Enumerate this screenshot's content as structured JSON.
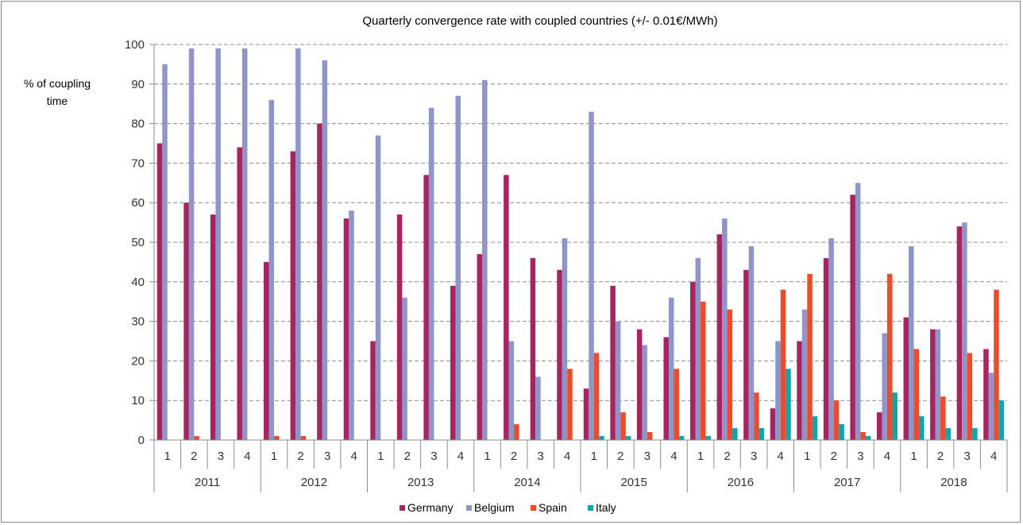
{
  "chart_data": {
    "type": "bar",
    "title": "Quarterly convergence rate with coupled countries (+/- 0.01€/MWh)",
    "ylabel_lines": [
      "% of coupling",
      "time"
    ],
    "xlabel": "",
    "ylim": [
      0,
      100
    ],
    "yticks": [
      0,
      10,
      20,
      30,
      40,
      50,
      60,
      70,
      80,
      90,
      100
    ],
    "grid": "horizontal-dashed",
    "legend_position": "bottom",
    "years": [
      "2011",
      "2012",
      "2013",
      "2014",
      "2015",
      "2016",
      "2017",
      "2018"
    ],
    "quarters": [
      "1",
      "2",
      "3",
      "4"
    ],
    "series": [
      {
        "name": "Germany",
        "color": "#A6245F",
        "values": [
          75,
          60,
          57,
          74,
          45,
          73,
          80,
          56,
          25,
          57,
          67,
          39,
          47,
          67,
          46,
          43,
          13,
          39,
          28,
          26,
          40,
          52,
          43,
          8,
          25,
          46,
          62,
          7,
          31,
          28,
          54,
          23
        ]
      },
      {
        "name": "Belgium",
        "color": "#8E95C9",
        "values": [
          95,
          99,
          99,
          99,
          86,
          99,
          96,
          58,
          77,
          36,
          84,
          87,
          91,
          25,
          16,
          51,
          83,
          30,
          24,
          36,
          46,
          56,
          49,
          25,
          33,
          51,
          65,
          27,
          49,
          28,
          55,
          17
        ]
      },
      {
        "name": "Spain",
        "color": "#EE4B2B",
        "values": [
          0,
          1,
          0,
          0,
          1,
          1,
          0,
          0,
          0,
          0,
          0,
          0,
          0,
          4,
          0,
          18,
          22,
          7,
          2,
          18,
          35,
          33,
          12,
          38,
          42,
          10,
          2,
          42,
          23,
          11,
          22,
          38
        ]
      },
      {
        "name": "Italy",
        "color": "#11A3AE",
        "values": [
          0,
          0,
          0,
          0,
          0,
          0,
          0,
          0,
          0,
          0,
          0,
          0,
          0,
          0,
          0,
          0,
          1,
          1,
          0,
          1,
          1,
          3,
          3,
          18,
          6,
          4,
          1,
          12,
          6,
          3,
          3,
          10
        ]
      }
    ]
  }
}
